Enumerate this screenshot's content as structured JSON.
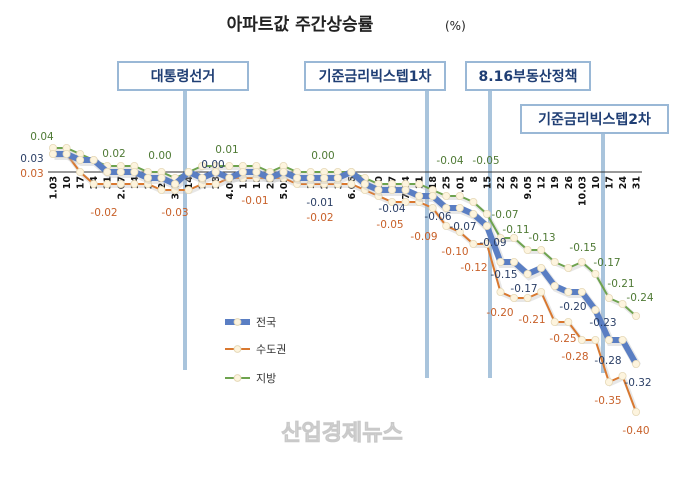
{
  "chart_data": {
    "type": "line",
    "title": "아파트값 주간상승률",
    "unit": "(%)",
    "categories": [
      "1.03",
      "10",
      "17",
      "24",
      "31",
      "2.07",
      "14",
      "21",
      "28",
      "3.07",
      "14",
      "21",
      "28",
      "4.04",
      "11",
      "18",
      "25",
      "5.02",
      "9",
      "16",
      "23",
      "30",
      "6.06",
      "13",
      "20",
      "27",
      "7.04",
      "11",
      "18",
      "25",
      "8.01",
      "8",
      "15",
      "22",
      "29",
      "9.05",
      "12",
      "19",
      "26",
      "10.03",
      "10",
      "17",
      "24",
      "31"
    ],
    "ylim": [
      -0.42,
      0.05
    ],
    "grid": false,
    "legend_placement": "bottom-left",
    "series": [
      {
        "name": "전국",
        "color": "#5a7ec3",
        "values": [
          0.03,
          0.03,
          0.02,
          0.02,
          0.0,
          0.0,
          0.0,
          -0.01,
          -0.01,
          -0.02,
          0.0,
          -0.01,
          0.0,
          -0.01,
          0.0,
          0.0,
          -0.01,
          0.0,
          -0.01,
          -0.01,
          -0.01,
          -0.01,
          0.0,
          -0.02,
          -0.03,
          -0.03,
          -0.03,
          -0.04,
          -0.04,
          -0.06,
          -0.06,
          -0.07,
          -0.09,
          -0.15,
          -0.15,
          -0.17,
          -0.16,
          -0.19,
          -0.2,
          -0.2,
          -0.23,
          -0.28,
          -0.28,
          -0.32
        ],
        "labels": [
          "0.03",
          "0.00",
          "-0.01",
          "-0.04",
          "-0.06",
          "-0.07",
          "-0.09",
          "-0.15",
          "-0.17",
          "-0.20",
          "-0.23",
          "-0.28",
          "-0.32"
        ]
      },
      {
        "name": "수도권",
        "color": "#d9782f",
        "values": [
          0.03,
          0.03,
          0.0,
          -0.02,
          -0.02,
          -0.02,
          -0.02,
          -0.02,
          -0.03,
          -0.03,
          -0.03,
          -0.02,
          -0.02,
          -0.01,
          -0.01,
          -0.01,
          -0.01,
          -0.01,
          -0.02,
          -0.02,
          -0.02,
          -0.02,
          -0.02,
          -0.03,
          -0.04,
          -0.05,
          -0.05,
          -0.05,
          -0.06,
          -0.09,
          -0.1,
          -0.12,
          -0.12,
          -0.2,
          -0.21,
          -0.21,
          -0.2,
          -0.25,
          -0.25,
          -0.28,
          -0.28,
          -0.35,
          -0.34,
          -0.4
        ],
        "labels": [
          "0.03",
          "-0.02",
          "-0.03",
          "-0.01",
          "-0.02",
          "-0.05",
          "-0.09",
          "-0.10",
          "-0.12",
          "-0.20",
          "-0.21",
          "-0.25",
          "-0.28",
          "-0.35",
          "-0.40"
        ]
      },
      {
        "name": "지방",
        "color": "#6ea34e",
        "values": [
          0.04,
          0.04,
          0.03,
          0.02,
          0.01,
          0.01,
          0.01,
          0.0,
          0.0,
          -0.01,
          0.0,
          0.01,
          0.01,
          0.01,
          0.01,
          0.01,
          0.0,
          0.01,
          0.0,
          0.0,
          0.0,
          0.0,
          0.0,
          -0.01,
          -0.02,
          -0.02,
          -0.02,
          -0.02,
          -0.03,
          -0.04,
          -0.04,
          -0.05,
          -0.07,
          -0.11,
          -0.11,
          -0.13,
          -0.13,
          -0.15,
          -0.16,
          -0.15,
          -0.17,
          -0.21,
          -0.22,
          -0.24
        ],
        "labels": [
          "0.04",
          "0.02",
          "0.00",
          "0.01",
          "0.00",
          "-0.04",
          "-0.05",
          "-0.07",
          "-0.11",
          "-0.13",
          "-0.15",
          "-0.17",
          "-0.21",
          "-0.24"
        ]
      }
    ],
    "annotations": [
      "대통령선거",
      "기준금리빅스텝1차",
      "8.16부동산정책",
      "기준금리빅스텝2차"
    ],
    "watermark": "산업경제뉴스"
  }
}
